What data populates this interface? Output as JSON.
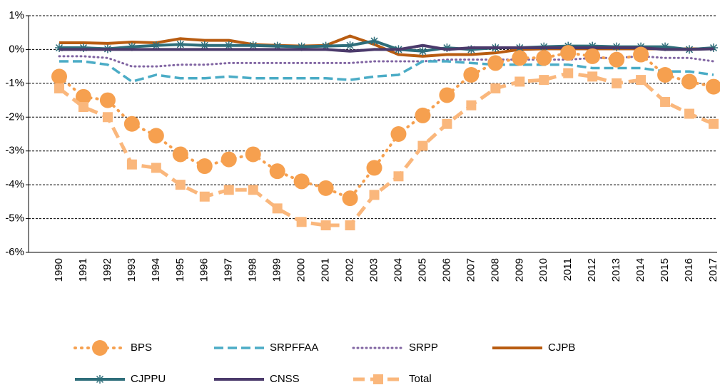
{
  "chart_data": {
    "type": "line",
    "categories": [
      "1990",
      "1991",
      "1992",
      "1993",
      "1994",
      "1995",
      "1996",
      "1997",
      "1998",
      "1999",
      "2000",
      "2001",
      "2002",
      "2003",
      "2004",
      "2005",
      "2006",
      "2007",
      "2008",
      "2009",
      "2010",
      "2011",
      "2012",
      "2013",
      "2014",
      "2015",
      "2016",
      "2017"
    ],
    "series": [
      {
        "name": "BPS",
        "color": "#f6a04f",
        "dash": "dotted",
        "marker": "circle",
        "values": [
          -0.8,
          -1.4,
          -1.5,
          -2.2,
          -2.55,
          -3.1,
          -3.45,
          -3.25,
          -3.1,
          -3.6,
          -3.9,
          -4.1,
          -4.4,
          -3.5,
          -2.5,
          -1.95,
          -1.35,
          -0.75,
          -0.4,
          -0.25,
          -0.25,
          -0.1,
          -0.2,
          -0.3,
          -0.15,
          -0.75,
          -0.95,
          -1.1
        ]
      },
      {
        "name": "SRPFFAA",
        "color": "#4bacc6",
        "dash": "dashed",
        "values": [
          -0.35,
          -0.35,
          -0.45,
          -0.95,
          -0.75,
          -0.85,
          -0.85,
          -0.8,
          -0.85,
          -0.85,
          -0.85,
          -0.85,
          -0.9,
          -0.8,
          -0.75,
          -0.35,
          -0.35,
          -0.4,
          -0.45,
          -0.45,
          -0.45,
          -0.45,
          -0.55,
          -0.55,
          -0.55,
          -0.65,
          -0.65,
          -0.75
        ]
      },
      {
        "name": "SRPP",
        "color": "#8064a2",
        "dash": "dotted",
        "values": [
          -0.2,
          -0.2,
          -0.25,
          -0.5,
          -0.5,
          -0.45,
          -0.45,
          -0.4,
          -0.4,
          -0.4,
          -0.4,
          -0.4,
          -0.4,
          -0.35,
          -0.35,
          -0.35,
          -0.3,
          -0.3,
          -0.3,
          -0.3,
          -0.3,
          -0.3,
          -0.25,
          -0.25,
          -0.2,
          -0.25,
          -0.25,
          -0.35
        ]
      },
      {
        "name": "CJPB",
        "color": "#b85c11",
        "dash": "solid",
        "values": [
          0.2,
          0.2,
          0.18,
          0.22,
          0.2,
          0.32,
          0.27,
          0.27,
          0.15,
          0.12,
          0.1,
          0.12,
          0.4,
          0.15,
          -0.15,
          -0.2,
          -0.15,
          -0.15,
          -0.1,
          0,
          0.02,
          0.02,
          0.02,
          0.02,
          0.02,
          0.02,
          0.02,
          0.02
        ]
      },
      {
        "name": "CJPPU",
        "color": "#2e6e7a",
        "dash": "solid",
        "marker": "star",
        "values": [
          0.05,
          0.05,
          0.02,
          0.08,
          0.12,
          0.15,
          0.12,
          0.12,
          0.12,
          0.1,
          0.08,
          0.1,
          0.12,
          0.25,
          0,
          -0.05,
          0.05,
          0,
          0.05,
          0.05,
          0.08,
          0.1,
          0.1,
          0.08,
          0.08,
          0.08,
          0,
          0.05
        ]
      },
      {
        "name": "CNSS",
        "color": "#4b3a6b",
        "dash": "solid",
        "values": [
          0,
          0,
          0,
          0,
          0,
          0,
          0,
          0,
          0,
          0,
          0,
          0,
          -0.05,
          0,
          0,
          0.12,
          0,
          0.05,
          0.05,
          0.05,
          0.05,
          0.05,
          0.05,
          0.05,
          0.05,
          0,
          0,
          0.02
        ]
      },
      {
        "name": "Total",
        "color": "#fab77c",
        "dash": "dashed",
        "marker": "square",
        "values": [
          -1.15,
          -1.7,
          -2.0,
          -3.4,
          -3.5,
          -4.0,
          -4.35,
          -4.15,
          -4.15,
          -4.7,
          -5.1,
          -5.2,
          -5.2,
          -4.3,
          -3.75,
          -2.85,
          -2.2,
          -1.65,
          -1.15,
          -0.95,
          -0.9,
          -0.7,
          -0.8,
          -1.0,
          -0.9,
          -1.55,
          -1.9,
          -2.2
        ]
      }
    ],
    "ylim": [
      -6,
      1
    ],
    "yticks": [
      {
        "value": 1,
        "label": "1%"
      },
      {
        "value": 0,
        "label": "0%"
      },
      {
        "value": -1,
        "label": "-1%"
      },
      {
        "value": -2,
        "label": "-2%"
      },
      {
        "value": -3,
        "label": "-3%"
      },
      {
        "value": -4,
        "label": "-4%"
      },
      {
        "value": -5,
        "label": "-5%"
      },
      {
        "value": -6,
        "label": "-6%"
      }
    ],
    "grid": true
  }
}
